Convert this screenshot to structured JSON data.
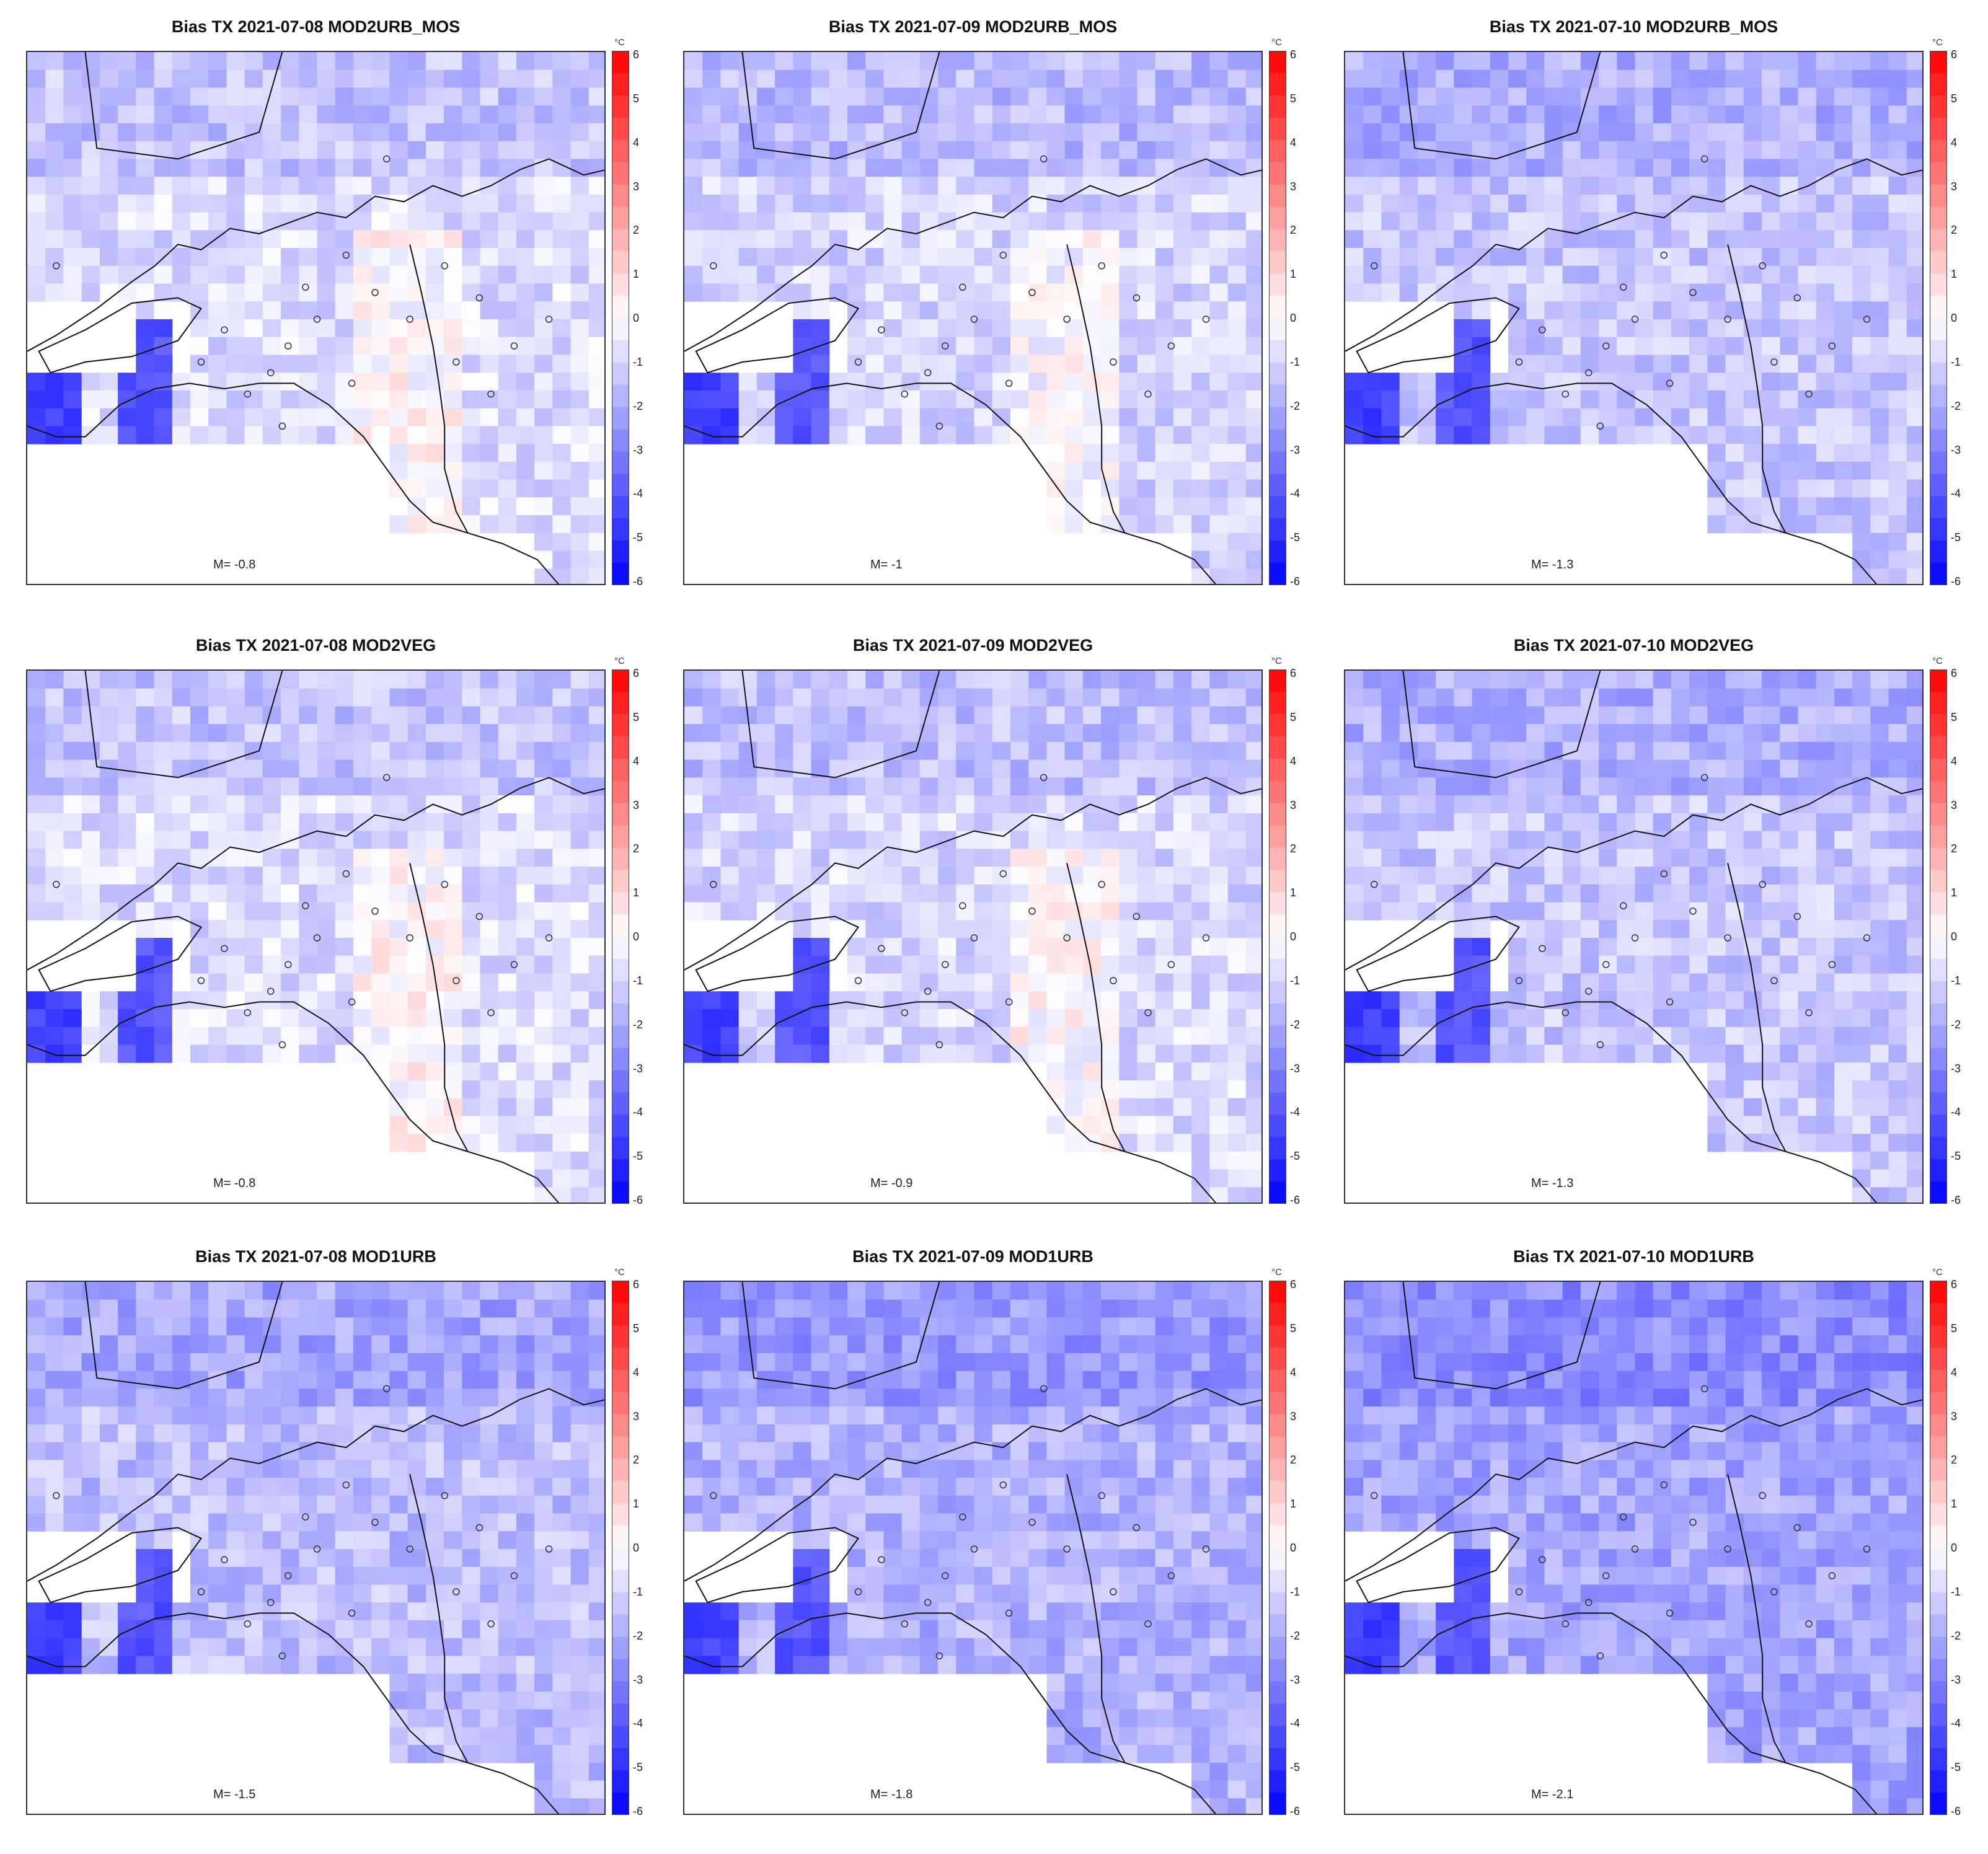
{
  "figure": {
    "unit": "°C",
    "colorbar_ticks": [
      "6",
      "5",
      "4",
      "3",
      "2",
      "1",
      "0",
      "-1",
      "-2",
      "-3",
      "-4",
      "-5",
      "-6"
    ],
    "colorbar_range": [
      -6,
      6
    ],
    "colors": {
      "cold": "#0000ff",
      "neutral": "#ffffff",
      "warm": "#ff0000",
      "coast": "#111111"
    }
  },
  "panels": [
    {
      "title": "Bias TX 2021-07-08 MOD2URB_MOS",
      "mean_label": "M= -0.8",
      "mean_value": -0.8
    },
    {
      "title": "Bias TX 2021-07-09 MOD2URB_MOS",
      "mean_label": "M= -1",
      "mean_value": -1.0
    },
    {
      "title": "Bias TX 2021-07-10 MOD2URB_MOS",
      "mean_label": "M= -1.3",
      "mean_value": -1.3
    },
    {
      "title": "Bias TX 2021-07-08 MOD2VEG",
      "mean_label": "M= -0.8",
      "mean_value": -0.8
    },
    {
      "title": "Bias TX 2021-07-09 MOD2VEG",
      "mean_label": "M= -0.9",
      "mean_value": -0.9
    },
    {
      "title": "Bias TX 2021-07-10 MOD2VEG",
      "mean_label": "M= -1.3",
      "mean_value": -1.3
    },
    {
      "title": "Bias TX 2021-07-08 MOD1URB",
      "mean_label": "M= -1.5",
      "mean_value": -1.5
    },
    {
      "title": "Bias TX 2021-07-09 MOD1URB",
      "mean_label": "M= -1.8",
      "mean_value": -1.8
    },
    {
      "title": "Bias TX 2021-07-10 MOD1URB",
      "mean_label": "M= -2.1",
      "mean_value": -2.1
    }
  ]
}
